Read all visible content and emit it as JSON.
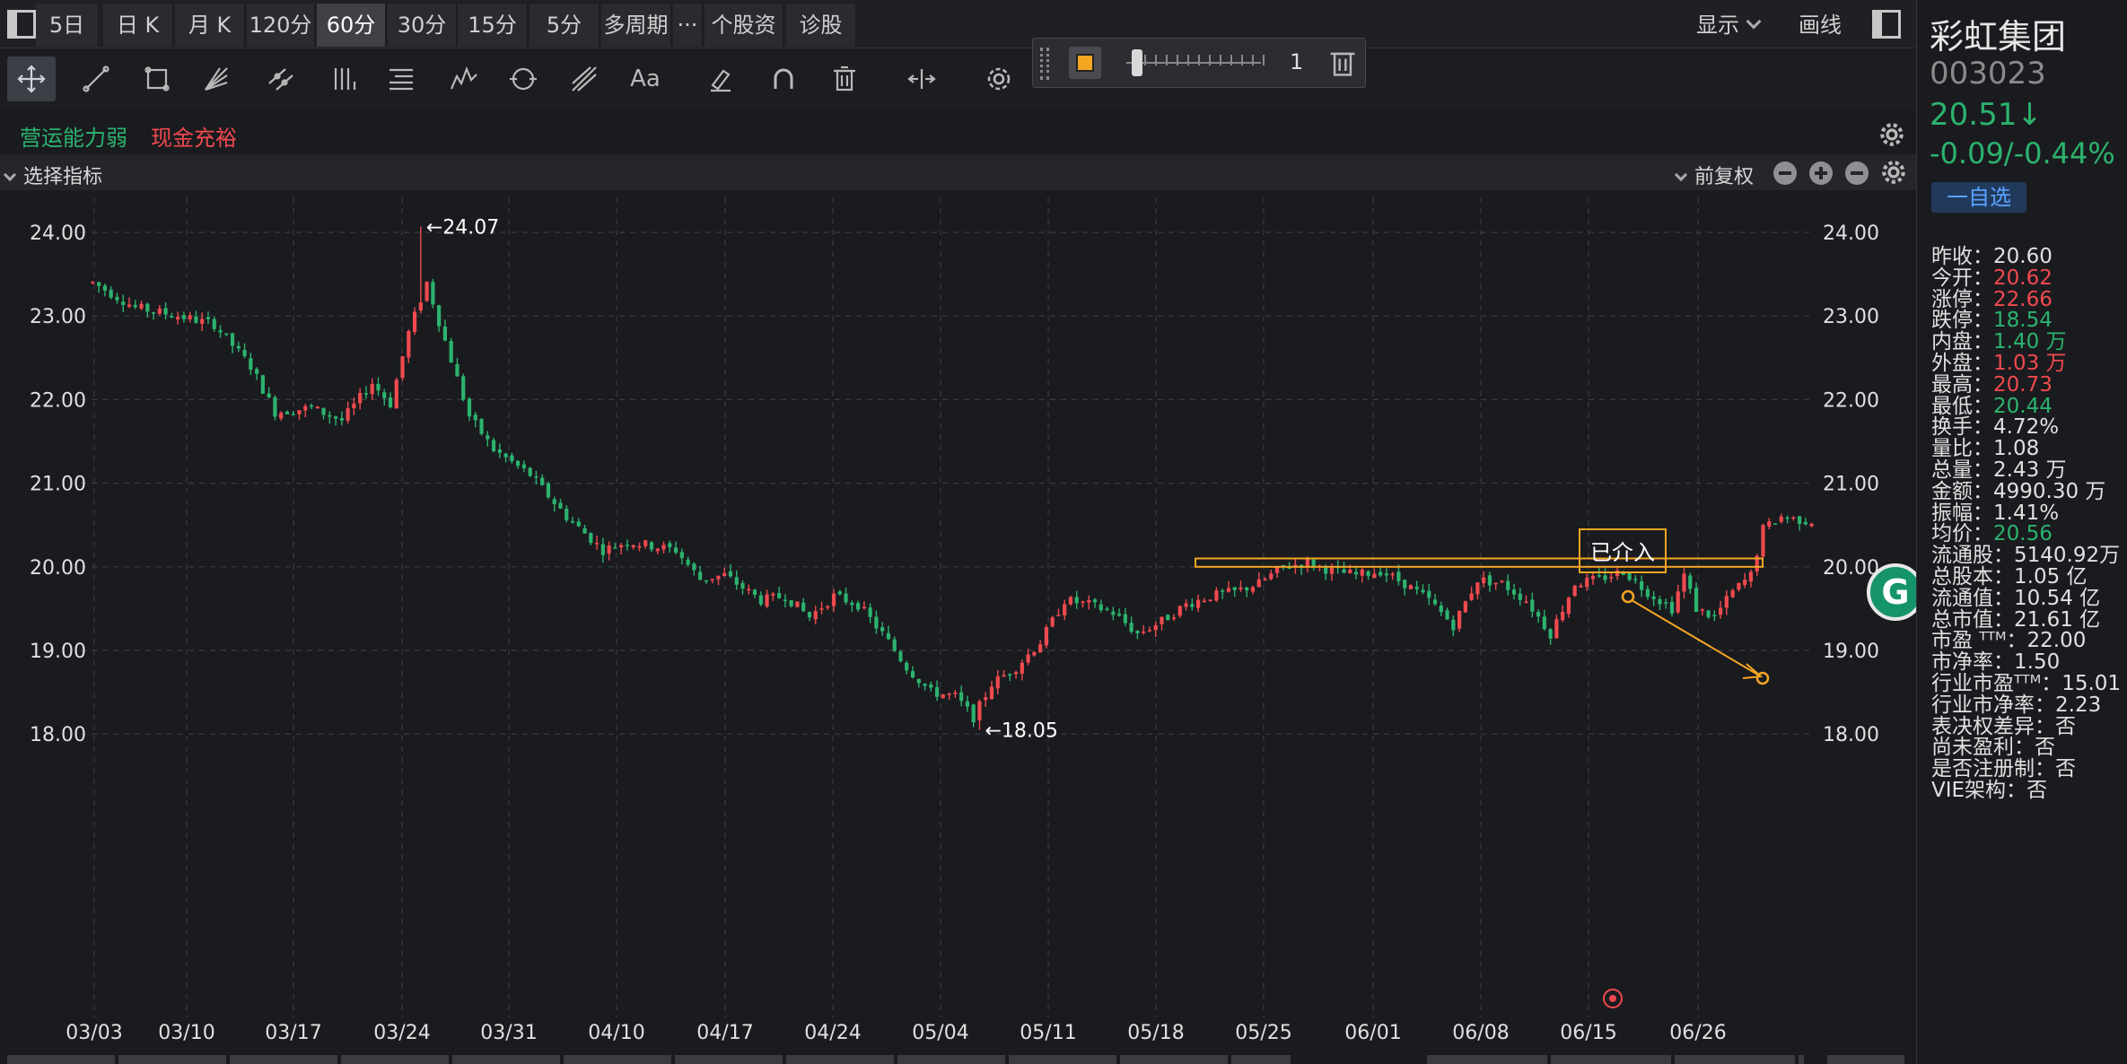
{
  "tabs": [
    {
      "label": "5日",
      "active": false
    },
    {
      "label": "日 K",
      "active": false
    },
    {
      "label": "月 K",
      "active": false
    },
    {
      "label": "120分",
      "active": false
    },
    {
      "label": "60分",
      "active": true
    },
    {
      "label": "30分",
      "active": false
    },
    {
      "label": "15分",
      "active": false
    },
    {
      "label": "5分",
      "active": false
    },
    {
      "label": "多周期",
      "active": false
    },
    {
      "label": "···",
      "active": false
    },
    {
      "label": "个股资料",
      "active": false
    },
    {
      "label": "诊股",
      "active": false
    }
  ],
  "topright": {
    "display_label": "显示",
    "draw_label": "画线"
  },
  "floatpanel": {
    "line_width": "1"
  },
  "tags": [
    {
      "label": "营运能力弱",
      "color": "#2cb36e"
    },
    {
      "label": "现金充裕",
      "color": "#ef4a4f"
    }
  ],
  "indicator_bar": {
    "select_label": "选择指标",
    "adjust_label": "前复权"
  },
  "colors": {
    "up": "#ef4a4f",
    "down": "#2cb36e",
    "annotation": "#f5a623",
    "grid": "#3a3c42",
    "axis_text": "#e0e0e0"
  },
  "chart_data": {
    "type": "candlestick",
    "interval": "60分",
    "ylim": [
      17.8,
      24.3
    ],
    "yticks": [
      "24.00",
      "23.00",
      "22.00",
      "21.00",
      "20.00",
      "19.00",
      "18.00"
    ],
    "xticks": [
      "03/03",
      "03/10",
      "03/17",
      "03/24",
      "03/31",
      "04/10",
      "04/17",
      "04/24",
      "05/04",
      "05/11",
      "05/18",
      "05/25",
      "06/01",
      "06/08",
      "06/15",
      "06/26"
    ],
    "high_label": "←24.07",
    "high_value": 24.07,
    "low_label": "←18.05",
    "low_value": 18.05,
    "trend": [
      {
        "i": 0,
        "v": 23.4
      },
      {
        "i": 7,
        "v": 23.1
      },
      {
        "i": 14,
        "v": 23.0
      },
      {
        "i": 20,
        "v": 22.9
      },
      {
        "i": 26,
        "v": 22.4
      },
      {
        "i": 30,
        "v": 21.85
      },
      {
        "i": 36,
        "v": 21.9
      },
      {
        "i": 41,
        "v": 21.75
      },
      {
        "i": 46,
        "v": 22.2
      },
      {
        "i": 49,
        "v": 21.95
      },
      {
        "i": 52,
        "v": 22.8
      },
      {
        "i": 55,
        "v": 23.4
      },
      {
        "i": 58,
        "v": 22.7
      },
      {
        "i": 62,
        "v": 21.8
      },
      {
        "i": 66,
        "v": 21.4
      },
      {
        "i": 72,
        "v": 21.1
      },
      {
        "i": 78,
        "v": 20.6
      },
      {
        "i": 84,
        "v": 20.2
      },
      {
        "i": 88,
        "v": 20.3
      },
      {
        "i": 92,
        "v": 20.25
      },
      {
        "i": 96,
        "v": 20.2
      },
      {
        "i": 100,
        "v": 19.85
      },
      {
        "i": 104,
        "v": 19.9
      },
      {
        "i": 110,
        "v": 19.6
      },
      {
        "i": 114,
        "v": 19.65
      },
      {
        "i": 118,
        "v": 19.4
      },
      {
        "i": 122,
        "v": 19.65
      },
      {
        "i": 126,
        "v": 19.55
      },
      {
        "i": 130,
        "v": 19.2
      },
      {
        "i": 134,
        "v": 18.8
      },
      {
        "i": 138,
        "v": 18.5
      },
      {
        "i": 142,
        "v": 18.45
      },
      {
        "i": 145,
        "v": 18.2
      },
      {
        "i": 148,
        "v": 18.6
      },
      {
        "i": 152,
        "v": 18.8
      },
      {
        "i": 156,
        "v": 19.1
      },
      {
        "i": 160,
        "v": 19.6
      },
      {
        "i": 164,
        "v": 19.55
      },
      {
        "i": 168,
        "v": 19.45
      },
      {
        "i": 172,
        "v": 19.2
      },
      {
        "i": 176,
        "v": 19.35
      },
      {
        "i": 180,
        "v": 19.55
      },
      {
        "i": 184,
        "v": 19.65
      },
      {
        "i": 188,
        "v": 19.7
      },
      {
        "i": 192,
        "v": 19.8
      },
      {
        "i": 196,
        "v": 20.0
      },
      {
        "i": 200,
        "v": 20.05
      },
      {
        "i": 204,
        "v": 19.95
      },
      {
        "i": 208,
        "v": 19.9
      },
      {
        "i": 212,
        "v": 19.95
      },
      {
        "i": 216,
        "v": 19.8
      },
      {
        "i": 220,
        "v": 19.6
      },
      {
        "i": 224,
        "v": 19.3
      },
      {
        "i": 228,
        "v": 19.85
      },
      {
        "i": 232,
        "v": 19.8
      },
      {
        "i": 236,
        "v": 19.6
      },
      {
        "i": 240,
        "v": 19.2
      },
      {
        "i": 244,
        "v": 19.8
      },
      {
        "i": 248,
        "v": 19.85
      },
      {
        "i": 252,
        "v": 19.95
      },
      {
        "i": 256,
        "v": 19.7
      },
      {
        "i": 260,
        "v": 19.5
      },
      {
        "i": 262,
        "v": 19.9
      },
      {
        "i": 264,
        "v": 19.5
      },
      {
        "i": 267,
        "v": 19.4
      },
      {
        "i": 270,
        "v": 19.7
      },
      {
        "i": 273,
        "v": 19.9
      },
      {
        "i": 275,
        "v": 20.45
      },
      {
        "i": 278,
        "v": 20.6
      },
      {
        "i": 282,
        "v": 20.55
      }
    ],
    "annotation": {
      "label": "已介入"
    },
    "highlight_box": {
      "top": 20.1,
      "bottom": 20.0
    }
  },
  "stock": {
    "name": "彩虹集团",
    "code": "003023",
    "price": "20.51↓",
    "change": "-0.09/-0.44%",
    "watch_label": "一自选"
  },
  "info": [
    {
      "label": "昨收：",
      "value": "20.60",
      "color": ""
    },
    {
      "label": "今开：",
      "value": "20.62",
      "color": "red"
    },
    {
      "label": "涨停：",
      "value": "22.66",
      "color": "red"
    },
    {
      "label": "跌停：",
      "value": "18.54",
      "color": "green"
    },
    {
      "label": "内盘：",
      "value": "1.40 万",
      "color": "green"
    },
    {
      "label": "外盘：",
      "value": "1.03 万",
      "color": "red"
    },
    {
      "label": "最高：",
      "value": "20.73",
      "color": "red"
    },
    {
      "label": "最低：",
      "value": "20.44",
      "color": "green"
    },
    {
      "label": "换手：",
      "value": "4.72%",
      "color": ""
    },
    {
      "label": "量比：",
      "value": "1.08",
      "color": ""
    },
    {
      "label": "总量：",
      "value": "2.43 万",
      "color": ""
    },
    {
      "label": "金额：",
      "value": "4990.30 万",
      "color": ""
    },
    {
      "label": "振幅：",
      "value": "1.41%",
      "color": ""
    },
    {
      "label": "均价：",
      "value": "20.56",
      "color": "green"
    },
    {
      "label": "流通股：",
      "value": "5140.92万",
      "color": ""
    },
    {
      "label": "总股本：",
      "value": "1.05 亿",
      "color": ""
    },
    {
      "label": "流通值：",
      "value": "10.54 亿",
      "color": ""
    },
    {
      "label": "总市值：",
      "value": "21.61 亿",
      "color": ""
    },
    {
      "label": "市盈 ᵀᵀᴹ：",
      "value": "22.00",
      "color": ""
    },
    {
      "label": "市净率：",
      "value": "1.50",
      "color": ""
    },
    {
      "label": "行业市盈ᵀᵀᴹ：",
      "value": "15.01",
      "color": ""
    },
    {
      "label": "行业市净率：",
      "value": "2.23",
      "color": ""
    },
    {
      "label": "表决权差异：",
      "value": "否",
      "color": ""
    },
    {
      "label": "尚未盈利：",
      "value": "否",
      "color": ""
    },
    {
      "label": "是否注册制：",
      "value": "否",
      "color": ""
    },
    {
      "label": "VIE架构：",
      "value": "否",
      "color": ""
    }
  ]
}
